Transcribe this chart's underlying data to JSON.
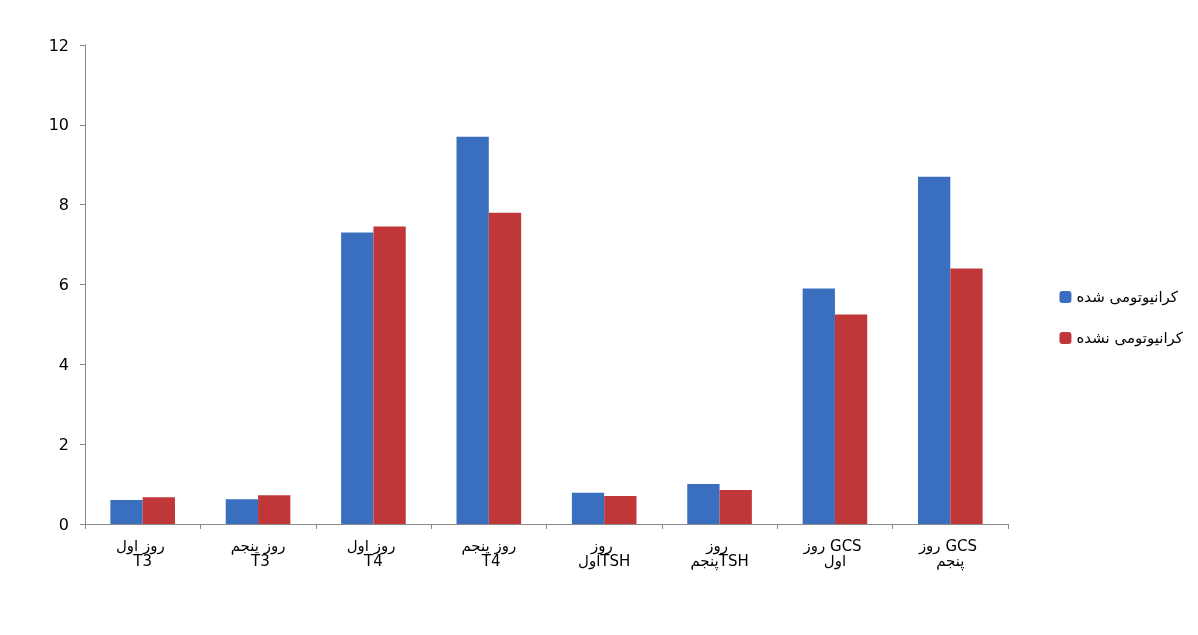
{
  "chart_data": {
    "type": "bar",
    "categories": [
      "روز اول T3",
      "روز پنجم T3",
      "روز اول T4",
      "روز پنجم T4",
      "روز اولTSH",
      "روز پنجمTSH",
      "روز GCS اول",
      "روز GCS پنجم"
    ],
    "series": [
      {
        "name": "کرانیوتومی شده",
        "color": "#3a6fbf",
        "values": [
          0.6,
          0.62,
          7.3,
          9.7,
          0.78,
          1.0,
          5.9,
          8.7
        ]
      },
      {
        "name": "کرانیوتومی نشده",
        "color": "#c0373a",
        "values": [
          0.67,
          0.72,
          7.45,
          7.8,
          0.7,
          0.85,
          5.25,
          6.4
        ]
      }
    ],
    "ylim": [
      0,
      12
    ],
    "yticks": [
      0,
      2,
      4,
      6,
      8,
      10,
      12
    ],
    "grid": false,
    "legend": "right"
  }
}
